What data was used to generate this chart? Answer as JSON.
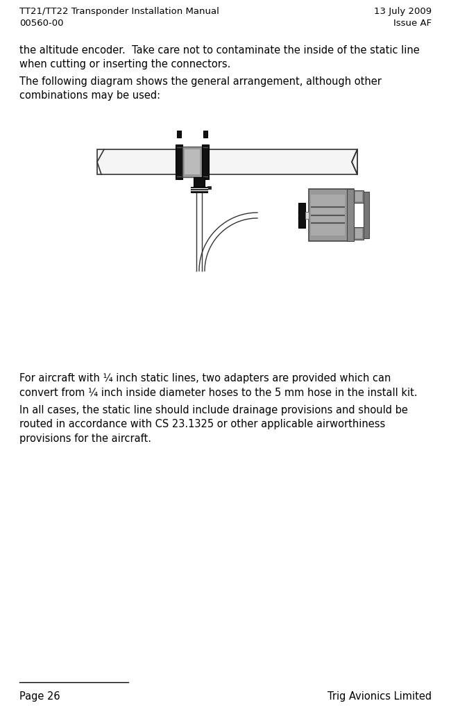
{
  "header_left_line1": "TT21/TT22 Transponder Installation Manual",
  "header_left_line2": "00560-00",
  "header_right_line1": "13 July 2009",
  "header_right_line2": "Issue AF",
  "body_text1": "the altitude encoder.  Take care not to contaminate the inside of the static line\nwhen cutting or inserting the connectors.",
  "body_text2": "The following diagram shows the general arrangement, although other\ncombinations may be used:",
  "body_text3": "For aircraft with ¼ inch static lines, two adapters are provided which can\nconvert from ¼ inch inside diameter hoses to the 5 mm hose in the install kit.",
  "body_text4": "In all cases, the static line should include drainage provisions and should be\nrouted in accordance with CS 23.1325 or other applicable airworthiness\nprovisions for the aircraft.",
  "footer_left": "Page 26",
  "footer_right": "Trig Avionics Limited",
  "bg_color": "#ffffff",
  "text_color": "#000000"
}
